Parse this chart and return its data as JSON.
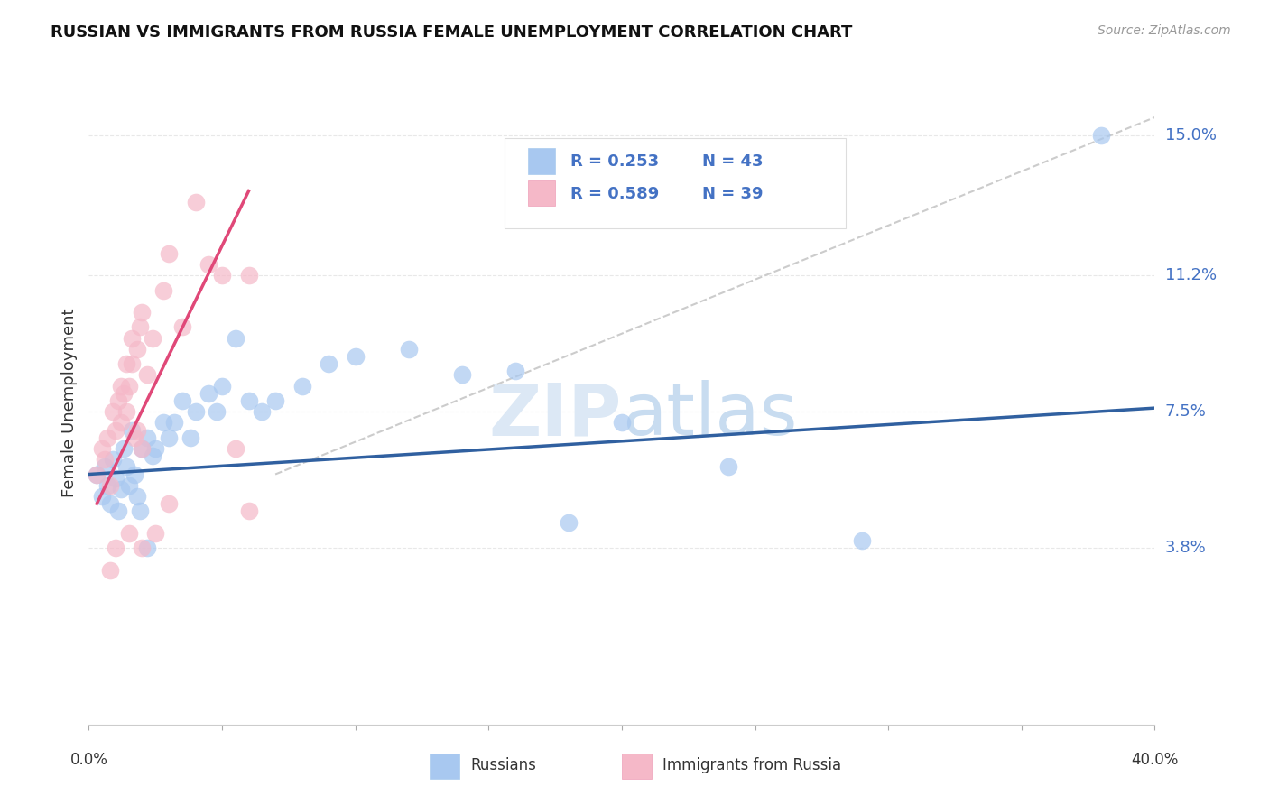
{
  "title": "RUSSIAN VS IMMIGRANTS FROM RUSSIA FEMALE UNEMPLOYMENT CORRELATION CHART",
  "source": "Source: ZipAtlas.com",
  "ylabel": "Female Unemployment",
  "watermark": "ZIPatlas",
  "ytick_labels": [
    "15.0%",
    "11.2%",
    "7.5%",
    "3.8%"
  ],
  "ytick_values": [
    0.15,
    0.112,
    0.075,
    0.038
  ],
  "xlim": [
    0.0,
    0.4
  ],
  "ylim": [
    -0.01,
    0.165
  ],
  "legend_label_blue": "Russians",
  "legend_label_pink": "Immigrants from Russia",
  "blue_color": "#A8C8F0",
  "pink_color": "#F5B8C8",
  "blue_line_color": "#3060A0",
  "pink_line_color": "#E04878",
  "dashed_color": "#CCCCCC",
  "blue_scatter": [
    [
      0.003,
      0.058
    ],
    [
      0.005,
      0.052
    ],
    [
      0.006,
      0.06
    ],
    [
      0.007,
      0.055
    ],
    [
      0.008,
      0.05
    ],
    [
      0.009,
      0.062
    ],
    [
      0.01,
      0.057
    ],
    [
      0.011,
      0.048
    ],
    [
      0.012,
      0.054
    ],
    [
      0.013,
      0.065
    ],
    [
      0.014,
      0.06
    ],
    [
      0.015,
      0.055
    ],
    [
      0.016,
      0.07
    ],
    [
      0.017,
      0.058
    ],
    [
      0.018,
      0.052
    ],
    [
      0.019,
      0.048
    ],
    [
      0.02,
      0.065
    ],
    [
      0.022,
      0.068
    ],
    [
      0.024,
      0.063
    ],
    [
      0.025,
      0.065
    ],
    [
      0.028,
      0.072
    ],
    [
      0.03,
      0.068
    ],
    [
      0.032,
      0.072
    ],
    [
      0.035,
      0.078
    ],
    [
      0.038,
      0.068
    ],
    [
      0.04,
      0.075
    ],
    [
      0.045,
      0.08
    ],
    [
      0.048,
      0.075
    ],
    [
      0.05,
      0.082
    ],
    [
      0.055,
      0.095
    ],
    [
      0.06,
      0.078
    ],
    [
      0.065,
      0.075
    ],
    [
      0.07,
      0.078
    ],
    [
      0.08,
      0.082
    ],
    [
      0.09,
      0.088
    ],
    [
      0.1,
      0.09
    ],
    [
      0.12,
      0.092
    ],
    [
      0.14,
      0.085
    ],
    [
      0.16,
      0.086
    ],
    [
      0.2,
      0.072
    ],
    [
      0.24,
      0.06
    ],
    [
      0.29,
      0.04
    ],
    [
      0.38,
      0.15
    ],
    [
      0.022,
      0.038
    ],
    [
      0.18,
      0.045
    ]
  ],
  "pink_scatter": [
    [
      0.003,
      0.058
    ],
    [
      0.005,
      0.065
    ],
    [
      0.006,
      0.062
    ],
    [
      0.007,
      0.068
    ],
    [
      0.008,
      0.055
    ],
    [
      0.009,
      0.075
    ],
    [
      0.01,
      0.07
    ],
    [
      0.011,
      0.078
    ],
    [
      0.012,
      0.072
    ],
    [
      0.013,
      0.08
    ],
    [
      0.014,
      0.075
    ],
    [
      0.015,
      0.082
    ],
    [
      0.016,
      0.088
    ],
    [
      0.017,
      0.068
    ],
    [
      0.018,
      0.092
    ],
    [
      0.019,
      0.098
    ],
    [
      0.02,
      0.102
    ],
    [
      0.022,
      0.085
    ],
    [
      0.024,
      0.095
    ],
    [
      0.028,
      0.108
    ],
    [
      0.03,
      0.118
    ],
    [
      0.035,
      0.098
    ],
    [
      0.04,
      0.132
    ],
    [
      0.045,
      0.115
    ],
    [
      0.05,
      0.112
    ],
    [
      0.055,
      0.065
    ],
    [
      0.06,
      0.112
    ],
    [
      0.015,
      0.042
    ],
    [
      0.02,
      0.038
    ],
    [
      0.025,
      0.042
    ],
    [
      0.03,
      0.05
    ],
    [
      0.06,
      0.048
    ],
    [
      0.008,
      0.032
    ],
    [
      0.01,
      0.038
    ],
    [
      0.012,
      0.082
    ],
    [
      0.014,
      0.088
    ],
    [
      0.016,
      0.095
    ],
    [
      0.018,
      0.07
    ],
    [
      0.02,
      0.065
    ]
  ],
  "blue_line_x": [
    0.0,
    0.4
  ],
  "blue_line_y": [
    0.058,
    0.076
  ],
  "pink_line_x": [
    0.003,
    0.06
  ],
  "pink_line_y": [
    0.05,
    0.135
  ],
  "dashed_line_x": [
    0.07,
    0.4
  ],
  "dashed_line_y": [
    0.058,
    0.155
  ],
  "grid_color": "#E8E8E8",
  "grid_style": "dotted"
}
